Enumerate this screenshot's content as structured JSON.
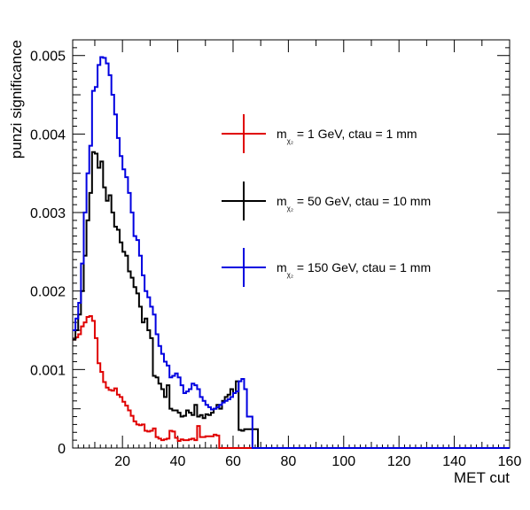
{
  "chart_data": {
    "type": "line",
    "step": true,
    "xlabel": "MET cut",
    "ylabel": "punzi significance",
    "xlim": [
      2,
      160
    ],
    "ylim": [
      0,
      0.0052
    ],
    "x_ticks": [
      20,
      40,
      60,
      80,
      100,
      120,
      140,
      160
    ],
    "x_tick_labels": [
      "20",
      "40",
      "60",
      "80",
      "100",
      "120",
      "140",
      "160"
    ],
    "y_ticks": [
      0,
      0.001,
      0.002,
      0.003,
      0.004,
      0.005
    ],
    "y_tick_labels": [
      "0",
      "0.001",
      "0.002",
      "0.003",
      "0.004",
      "0.005"
    ],
    "legend_placement": "upper-middle",
    "series": [
      {
        "name_main": "m",
        "name_sub": "χ₂",
        "name_rest": " = 1 GeV, ctau = 1 mm",
        "color": "#e00000",
        "x": [
          2,
          3,
          4,
          5,
          6,
          7,
          8,
          9,
          10,
          11,
          12,
          13,
          14,
          15,
          16,
          17,
          18,
          19,
          20,
          21,
          22,
          23,
          24,
          25,
          26,
          27,
          28,
          29,
          30,
          31,
          32,
          33,
          34,
          35,
          36,
          37,
          38,
          39,
          40,
          41,
          42,
          43,
          44,
          45,
          46,
          47,
          48,
          49,
          50,
          51,
          52,
          53,
          54,
          55,
          56,
          57,
          58,
          59,
          60,
          61,
          62,
          63,
          64,
          65,
          66,
          67,
          68,
          69,
          70,
          160
        ],
        "values": [
          0.00138,
          0.00141,
          0.00145,
          0.00155,
          0.0016,
          0.00167,
          0.00168,
          0.00162,
          0.0014,
          0.00108,
          0.00097,
          0.00084,
          0.00077,
          0.00074,
          0.00073,
          0.00076,
          0.00068,
          0.00065,
          0.00059,
          0.00054,
          0.00048,
          0.00041,
          0.00034,
          0.0003,
          0.00029,
          0.0003,
          0.00022,
          0.00021,
          0.00022,
          0.00025,
          0.00014,
          0.00012,
          0.0001,
          0.00011,
          0.00012,
          0.00022,
          0.00021,
          0.00013,
          9e-05,
          0.00011,
          0.0001,
          0.0001,
          0.00011,
          0.00012,
          0.0001,
          0.00028,
          0.00014,
          0.00014,
          0.00015,
          0.00015,
          0.00015,
          0.00017,
          0.00016,
          0.0,
          0.0,
          0.0,
          0.0,
          0.0,
          0.0,
          0.0,
          0.0,
          0.0,
          0.0,
          0.0,
          0.0,
          0.0,
          0.0,
          0.0,
          0.0,
          0.0
        ]
      },
      {
        "name_main": "m",
        "name_sub": "χ₂",
        "name_rest": " = 50 GeV, ctau = 10 mm",
        "color": "#000000",
        "x": [
          2,
          3,
          4,
          5,
          6,
          7,
          8,
          9,
          10,
          11,
          12,
          13,
          14,
          15,
          16,
          17,
          18,
          19,
          20,
          21,
          22,
          23,
          24,
          25,
          26,
          27,
          28,
          29,
          30,
          31,
          32,
          33,
          34,
          35,
          36,
          37,
          38,
          39,
          40,
          41,
          42,
          43,
          44,
          45,
          46,
          47,
          48,
          49,
          50,
          51,
          52,
          53,
          54,
          55,
          56,
          57,
          58,
          59,
          60,
          61,
          62,
          63,
          64,
          65,
          66,
          67,
          68,
          69,
          70,
          160
        ],
        "values": [
          0.00138,
          0.0015,
          0.0017,
          0.002,
          0.00245,
          0.0029,
          0.00325,
          0.00377,
          0.00375,
          0.00357,
          0.00365,
          0.00332,
          0.00315,
          0.00322,
          0.003,
          0.00282,
          0.00278,
          0.00262,
          0.0025,
          0.00245,
          0.00225,
          0.00217,
          0.00205,
          0.00197,
          0.0018,
          0.0016,
          0.00165,
          0.0015,
          0.0014,
          0.00092,
          0.0009,
          0.00082,
          0.00075,
          0.00065,
          0.0008,
          0.0005,
          0.00048,
          0.00048,
          0.00045,
          0.0004,
          0.00041,
          0.00048,
          0.00045,
          0.00042,
          0.00055,
          0.0004,
          0.00042,
          0.00038,
          0.00043,
          0.00042,
          0.00045,
          0.0005,
          0.00055,
          0.0005,
          0.0006,
          0.00065,
          0.00068,
          0.00075,
          0.0007,
          0.00085,
          0.00023,
          0.00022,
          0.00024,
          0.00024,
          0.00024,
          0.00024,
          0.00024,
          0.0,
          0.0,
          0.0
        ]
      },
      {
        "name_main": "m",
        "name_sub": "χ₂",
        "name_rest": " = 150 GeV, ctau = 1 mm",
        "color": "#0000e0",
        "x": [
          2,
          3,
          4,
          5,
          6,
          7,
          8,
          9,
          10,
          11,
          12,
          13,
          14,
          15,
          16,
          17,
          18,
          19,
          20,
          21,
          22,
          23,
          24,
          25,
          26,
          27,
          28,
          29,
          30,
          31,
          32,
          33,
          34,
          35,
          36,
          37,
          38,
          39,
          40,
          41,
          42,
          43,
          44,
          45,
          46,
          47,
          48,
          49,
          50,
          51,
          52,
          53,
          54,
          55,
          56,
          57,
          58,
          59,
          60,
          61,
          62,
          63,
          64,
          65,
          66,
          67,
          68,
          69,
          70,
          160
        ],
        "values": [
          0.0015,
          0.00165,
          0.00185,
          0.00235,
          0.003,
          0.0035,
          0.00385,
          0.00455,
          0.0046,
          0.00488,
          0.00498,
          0.00497,
          0.0049,
          0.00475,
          0.0045,
          0.00425,
          0.00395,
          0.00372,
          0.00355,
          0.00345,
          0.00325,
          0.003,
          0.0027,
          0.00265,
          0.00245,
          0.0022,
          0.002,
          0.00192,
          0.0018,
          0.0017,
          0.00145,
          0.0013,
          0.0012,
          0.0011,
          0.00105,
          0.0009,
          0.00092,
          0.00095,
          0.0009,
          0.0008,
          0.0007,
          0.00072,
          0.00075,
          0.00082,
          0.0008,
          0.00075,
          0.00065,
          0.0006,
          0.00055,
          0.00052,
          0.00049,
          0.0005,
          0.00052,
          0.00055,
          0.00058,
          0.0006,
          0.00062,
          0.00065,
          0.0007,
          0.00072,
          0.00085,
          0.00088,
          0.00075,
          0.0004,
          0.0004,
          0.0,
          0.0,
          0.0,
          0.0,
          0.0
        ]
      }
    ]
  }
}
